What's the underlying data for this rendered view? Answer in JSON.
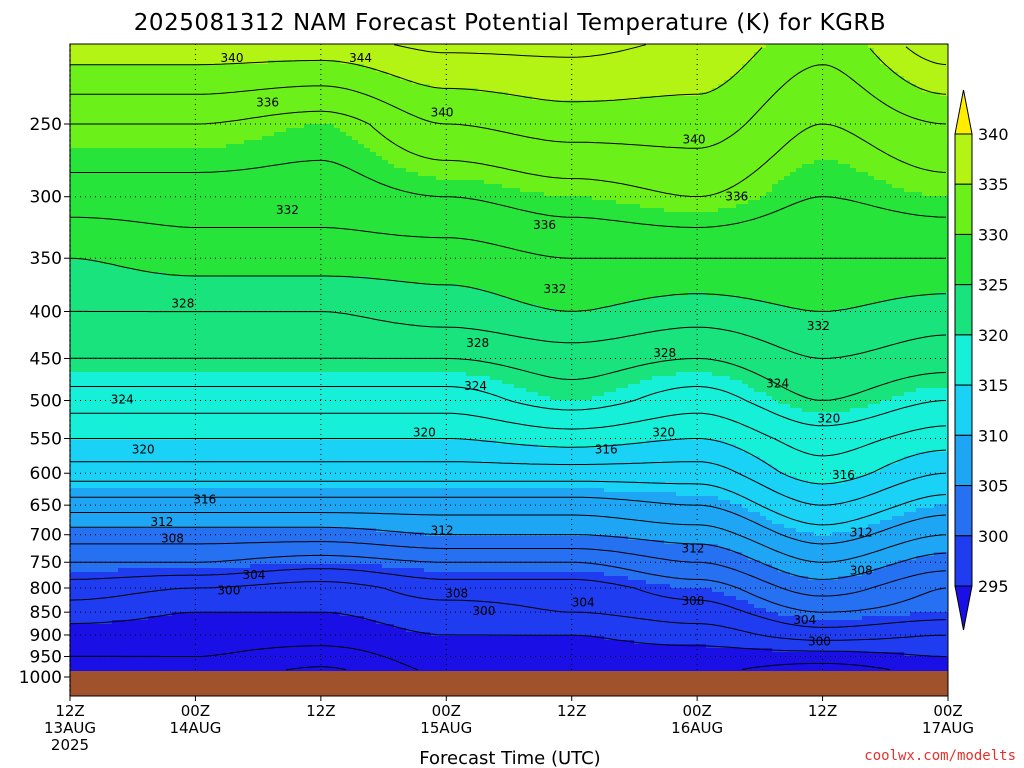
{
  "chart_data": {
    "type": "contour",
    "title": "2025081312 NAM Forecast Potential Temperature (K) for KGRB",
    "xlabel": "Forecast Time (UTC)",
    "ylabel": "",
    "y_axis": {
      "unit": "hPa",
      "inverted": true,
      "ticks": [
        250,
        300,
        350,
        400,
        450,
        500,
        550,
        600,
        650,
        700,
        750,
        800,
        850,
        900,
        950,
        1000
      ],
      "range": [
        1010,
        200
      ]
    },
    "x_axis": {
      "tick_labels": [
        {
          "hour": 0,
          "line1": "12Z",
          "line2": "13AUG",
          "line3": "2025"
        },
        {
          "hour": 12,
          "line1": "00Z",
          "line2": "14AUG",
          "line3": ""
        },
        {
          "hour": 24,
          "line1": "12Z",
          "line2": "",
          "line3": ""
        },
        {
          "hour": 36,
          "line1": "00Z",
          "line2": "15AUG",
          "line3": ""
        },
        {
          "hour": 48,
          "line1": "12Z",
          "line2": "",
          "line3": ""
        },
        {
          "hour": 60,
          "line1": "00Z",
          "line2": "16AUG",
          "line3": ""
        },
        {
          "hour": 72,
          "line1": "12Z",
          "line2": "",
          "line3": ""
        },
        {
          "hour": 84,
          "line1": "00Z",
          "line2": "17AUG",
          "line3": ""
        }
      ],
      "range_hours": [
        0,
        84
      ]
    },
    "grid": true,
    "colorbar": {
      "levels": [
        295,
        300,
        305,
        310,
        315,
        320,
        325,
        330,
        335,
        340,
        345
      ],
      "colors": [
        "#1a10e6",
        "#1f3cf0",
        "#2670f2",
        "#1ea6f5",
        "#19d2f5",
        "#16f0d8",
        "#18e37c",
        "#26e43a",
        "#6cf01a",
        "#b4f414",
        "#ffee00"
      ],
      "extend": "both",
      "position": "right"
    },
    "ground_color": "#a0522d",
    "contour_interval": 2,
    "profile_hours": [
      0,
      12,
      24,
      36,
      48,
      60,
      72,
      84
    ],
    "profiles": [
      {
        "hour": 0,
        "theta_by_pressure": {
          "1000": 296,
          "950": 298,
          "900": 299,
          "850": 301,
          "800": 303,
          "750": 306,
          "700": 309,
          "650": 313,
          "600": 317,
          "550": 320,
          "500": 323,
          "450": 326,
          "400": 328,
          "350": 330,
          "300": 333,
          "250": 336,
          "200": 342
        }
      },
      {
        "hour": 12,
        "theta_by_pressure": {
          "1000": 297,
          "950": 298,
          "900": 299,
          "850": 300,
          "800": 302,
          "750": 306,
          "700": 309,
          "650": 313,
          "600": 317,
          "550": 320,
          "500": 323,
          "450": 326,
          "400": 328,
          "350": 331,
          "300": 333,
          "250": 336,
          "200": 342
        }
      },
      {
        "hour": 24,
        "theta_by_pressure": {
          "1000": 295,
          "950": 297,
          "900": 299,
          "850": 300,
          "800": 301,
          "750": 305,
          "700": 309,
          "650": 313,
          "600": 317,
          "550": 320,
          "500": 323,
          "450": 326,
          "400": 328,
          "350": 331,
          "300": 333,
          "250": 335,
          "200": 342
        }
      },
      {
        "hour": 36,
        "theta_by_pressure": {
          "1000": 298,
          "950": 299,
          "900": 300,
          "850": 301,
          "800": 303,
          "750": 306,
          "700": 310,
          "650": 313,
          "600": 317,
          "550": 320,
          "500": 323,
          "450": 326,
          "400": 329,
          "350": 331,
          "300": 334,
          "250": 338,
          "200": 343
        }
      },
      {
        "hour": 48,
        "theta_by_pressure": {
          "1000": 298,
          "950": 299,
          "900": 300,
          "850": 302,
          "800": 303,
          "750": 306,
          "700": 310,
          "650": 313,
          "600": 317,
          "550": 321,
          "500": 325,
          "450": 327,
          "400": 330,
          "350": 332,
          "300": 335,
          "250": 339,
          "200": 343
        }
      },
      {
        "hour": 60,
        "theta_by_pressure": {
          "1000": 298,
          "950": 299,
          "900": 301,
          "850": 303,
          "800": 305,
          "750": 308,
          "700": 311,
          "650": 314,
          "600": 317,
          "550": 320,
          "500": 323,
          "450": 326,
          "400": 329,
          "350": 332,
          "300": 336,
          "250": 339,
          "200": 342
        }
      },
      {
        "hour": 72,
        "theta_by_pressure": {
          "1000": 296,
          "950": 299,
          "900": 303,
          "850": 306,
          "800": 309,
          "750": 312,
          "700": 315,
          "650": 318,
          "600": 321,
          "550": 323,
          "500": 326,
          "450": 328,
          "400": 330,
          "350": 332,
          "300": 334,
          "250": 336,
          "200": 339
        }
      },
      {
        "hour": 84,
        "theta_by_pressure": {
          "1000": 298,
          "950": 300,
          "900": 302,
          "850": 305,
          "800": 306,
          "750": 309,
          "700": 312,
          "650": 315,
          "600": 318,
          "550": 321,
          "500": 324,
          "450": 327,
          "400": 329,
          "350": 332,
          "300": 335,
          "250": 338,
          "200": 344
        }
      }
    ],
    "contour_labels": [
      {
        "value": "340",
        "hour": 15.5,
        "pressure": 212
      },
      {
        "value": "344",
        "hour": 27.8,
        "pressure": 212
      },
      {
        "value": "336",
        "hour": 18.9,
        "pressure": 237
      },
      {
        "value": "340",
        "hour": 35.6,
        "pressure": 243
      },
      {
        "value": "340",
        "hour": 59.7,
        "pressure": 260
      },
      {
        "value": "336",
        "hour": 45.4,
        "pressure": 322
      },
      {
        "value": "336",
        "hour": 63.8,
        "pressure": 300
      },
      {
        "value": "332",
        "hour": 20.8,
        "pressure": 310
      },
      {
        "value": "332",
        "hour": 46.4,
        "pressure": 378
      },
      {
        "value": "328",
        "hour": 10.8,
        "pressure": 392
      },
      {
        "value": "332",
        "hour": 71.6,
        "pressure": 415
      },
      {
        "value": "328",
        "hour": 39.0,
        "pressure": 433
      },
      {
        "value": "328",
        "hour": 56.9,
        "pressure": 444
      },
      {
        "value": "324",
        "hour": 67.7,
        "pressure": 479
      },
      {
        "value": "324",
        "hour": 38.8,
        "pressure": 482
      },
      {
        "value": "324",
        "hour": 5.0,
        "pressure": 499
      },
      {
        "value": "320",
        "hour": 72.6,
        "pressure": 523
      },
      {
        "value": "320",
        "hour": 33.9,
        "pressure": 542
      },
      {
        "value": "320",
        "hour": 56.8,
        "pressure": 542
      },
      {
        "value": "316",
        "hour": 51.3,
        "pressure": 565
      },
      {
        "value": "320",
        "hour": 7.0,
        "pressure": 565
      },
      {
        "value": "316",
        "hour": 74.0,
        "pressure": 603
      },
      {
        "value": "316",
        "hour": 12.9,
        "pressure": 641
      },
      {
        "value": "312",
        "hour": 8.8,
        "pressure": 678
      },
      {
        "value": "312",
        "hour": 35.6,
        "pressure": 693
      },
      {
        "value": "312",
        "hour": 75.7,
        "pressure": 696
      },
      {
        "value": "308",
        "hour": 9.8,
        "pressure": 707
      },
      {
        "value": "312",
        "hour": 59.6,
        "pressure": 725
      },
      {
        "value": "308",
        "hour": 75.7,
        "pressure": 766
      },
      {
        "value": "304",
        "hour": 17.6,
        "pressure": 774
      },
      {
        "value": "300",
        "hour": 15.2,
        "pressure": 805
      },
      {
        "value": "308",
        "hour": 37.0,
        "pressure": 811
      },
      {
        "value": "304",
        "hour": 49.1,
        "pressure": 830
      },
      {
        "value": "308",
        "hour": 59.6,
        "pressure": 827
      },
      {
        "value": "300",
        "hour": 39.6,
        "pressure": 847
      },
      {
        "value": "304",
        "hour": 70.3,
        "pressure": 867
      },
      {
        "value": "300",
        "hour": 71.7,
        "pressure": 915
      }
    ]
  },
  "credit": "coolwx.com/modelts"
}
